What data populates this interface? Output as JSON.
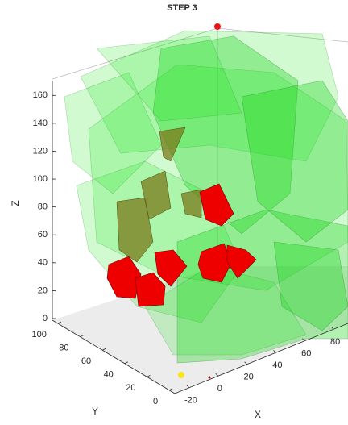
{
  "chart_data": {
    "type": "scatter3d",
    "title": "STEP 3",
    "xlabel": "X",
    "ylabel": "Y",
    "zlabel": "Z",
    "xlim": [
      -30,
      90
    ],
    "xticks": [
      -20,
      0,
      20,
      40,
      60,
      80
    ],
    "ylim": [
      -5,
      105
    ],
    "yticks": [
      0,
      20,
      40,
      60,
      80,
      100
    ],
    "zlim": [
      0,
      170
    ],
    "zticks": [
      0,
      20,
      40,
      60,
      80,
      100,
      120,
      140,
      160
    ]
  }
}
